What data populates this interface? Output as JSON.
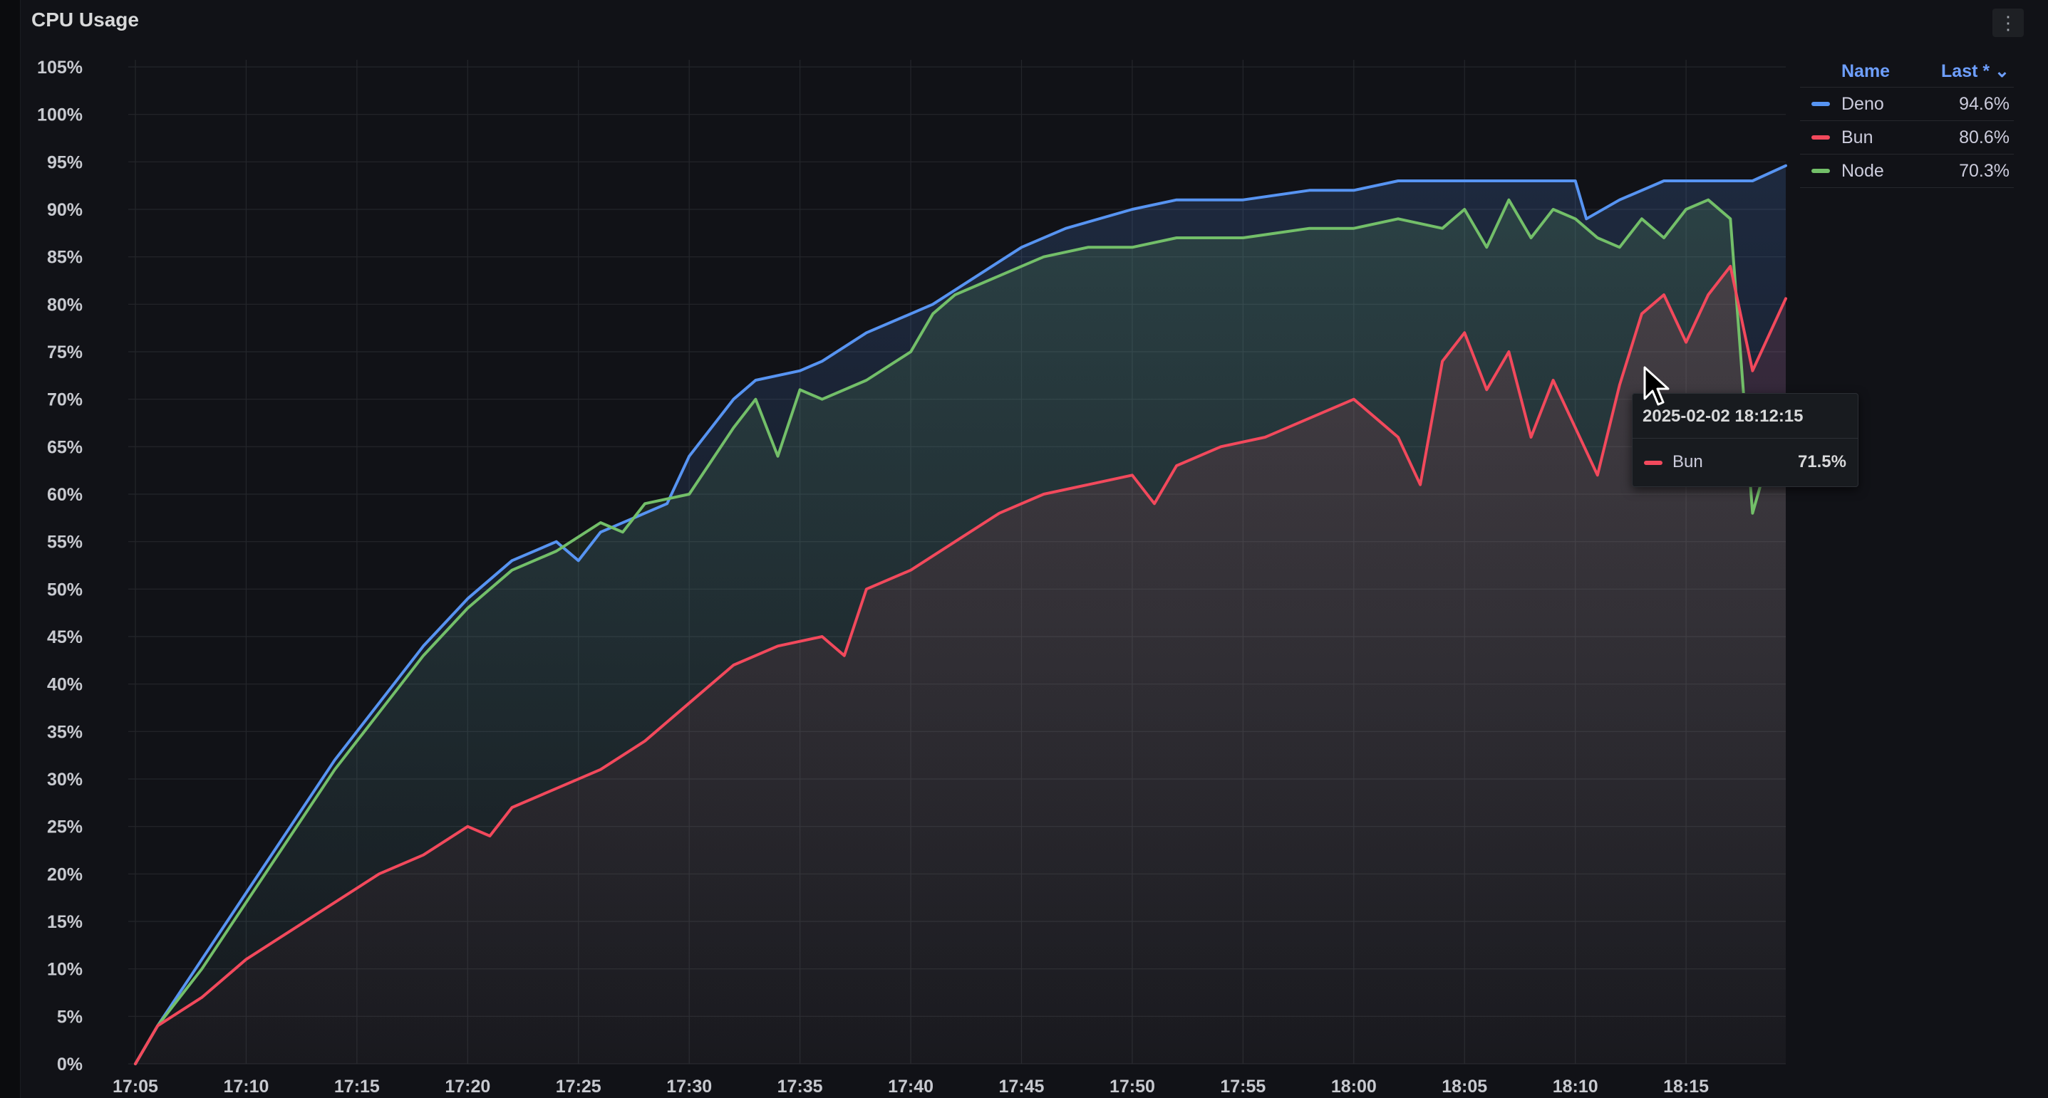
{
  "panel": {
    "title": "CPU Usage",
    "menu_icon": "kebab-menu-icon",
    "menu_label": "⋮"
  },
  "legend": {
    "name_header": "Name",
    "last_header": "Last * ⌄",
    "items": [
      {
        "name": "Deno",
        "last": "94.6%",
        "color": "#5794f2"
      },
      {
        "name": "Bun",
        "last": "80.6%",
        "color": "#f2495c"
      },
      {
        "name": "Node",
        "last": "70.3%",
        "color": "#73bf69"
      }
    ]
  },
  "tooltip": {
    "time": "2025-02-02 18:12:15",
    "series": "Bun",
    "value": "71.5%",
    "color": "#f2495c"
  },
  "chart_data": {
    "type": "line",
    "title": "CPU Usage",
    "xlabel": "",
    "ylabel": "",
    "x_ticks": [
      "17:05",
      "17:10",
      "17:15",
      "17:20",
      "17:25",
      "17:30",
      "17:35",
      "17:40",
      "17:45",
      "17:50",
      "17:55",
      "18:00",
      "18:05",
      "18:10",
      "18:15"
    ],
    "y_ticks": [
      "0%",
      "5%",
      "10%",
      "15%",
      "20%",
      "25%",
      "30%",
      "35%",
      "40%",
      "45%",
      "50%",
      "55%",
      "60%",
      "65%",
      "70%",
      "75%",
      "80%",
      "85%",
      "90%",
      "95%",
      "100%",
      "105%"
    ],
    "xlim": [
      "17:05",
      "18:19:30"
    ],
    "ylim": [
      0,
      105
    ],
    "grid": true,
    "legend_position": "right",
    "series": [
      {
        "name": "Deno",
        "color": "#5794f2",
        "points": [
          [
            "17:05",
            0
          ],
          [
            "17:06",
            4
          ],
          [
            "17:08",
            11
          ],
          [
            "17:10",
            18
          ],
          [
            "17:12",
            25
          ],
          [
            "17:14",
            32
          ],
          [
            "17:16",
            38
          ],
          [
            "17:18",
            44
          ],
          [
            "17:20",
            49
          ],
          [
            "17:22",
            53
          ],
          [
            "17:24",
            55
          ],
          [
            "17:25",
            53
          ],
          [
            "17:26",
            56
          ],
          [
            "17:28",
            58
          ],
          [
            "17:29",
            59
          ],
          [
            "17:30",
            64
          ],
          [
            "17:31",
            67
          ],
          [
            "17:32",
            70
          ],
          [
            "17:33",
            72
          ],
          [
            "17:35",
            73
          ],
          [
            "17:36",
            74
          ],
          [
            "17:38",
            77
          ],
          [
            "17:40",
            79
          ],
          [
            "17:41",
            80
          ],
          [
            "17:43",
            83
          ],
          [
            "17:45",
            86
          ],
          [
            "17:47",
            88
          ],
          [
            "17:50",
            90
          ],
          [
            "17:52",
            91
          ],
          [
            "17:55",
            91
          ],
          [
            "17:58",
            92
          ],
          [
            "18:00",
            92
          ],
          [
            "18:02",
            93
          ],
          [
            "18:05",
            93
          ],
          [
            "18:07",
            93
          ],
          [
            "18:10",
            93
          ],
          [
            "18:10:30",
            89
          ],
          [
            "18:12",
            91
          ],
          [
            "18:14",
            93
          ],
          [
            "18:16",
            93
          ],
          [
            "18:18",
            93
          ],
          [
            "18:19:30",
            94.6
          ]
        ]
      },
      {
        "name": "Bun",
        "color": "#f2495c",
        "points": [
          [
            "17:05",
            0
          ],
          [
            "17:06",
            4
          ],
          [
            "17:08",
            7
          ],
          [
            "17:10",
            11
          ],
          [
            "17:12",
            14
          ],
          [
            "17:14",
            17
          ],
          [
            "17:16",
            20
          ],
          [
            "17:18",
            22
          ],
          [
            "17:20",
            25
          ],
          [
            "17:21",
            24
          ],
          [
            "17:22",
            27
          ],
          [
            "17:24",
            29
          ],
          [
            "17:26",
            31
          ],
          [
            "17:28",
            34
          ],
          [
            "17:30",
            38
          ],
          [
            "17:32",
            42
          ],
          [
            "17:34",
            44
          ],
          [
            "17:36",
            45
          ],
          [
            "17:37",
            43
          ],
          [
            "17:38",
            50
          ],
          [
            "17:40",
            52
          ],
          [
            "17:42",
            55
          ],
          [
            "17:44",
            58
          ],
          [
            "17:46",
            60
          ],
          [
            "17:48",
            61
          ],
          [
            "17:50",
            62
          ],
          [
            "17:51",
            59
          ],
          [
            "17:52",
            63
          ],
          [
            "17:54",
            65
          ],
          [
            "17:56",
            66
          ],
          [
            "17:58",
            68
          ],
          [
            "18:00",
            70
          ],
          [
            "18:01",
            68
          ],
          [
            "18:02",
            66
          ],
          [
            "18:03",
            61
          ],
          [
            "18:04",
            74
          ],
          [
            "18:05",
            77
          ],
          [
            "18:06",
            71
          ],
          [
            "18:07",
            75
          ],
          [
            "18:08",
            66
          ],
          [
            "18:09",
            72
          ],
          [
            "18:10",
            67
          ],
          [
            "18:11",
            62
          ],
          [
            "18:12",
            71.5
          ],
          [
            "18:13",
            79
          ],
          [
            "18:14",
            81
          ],
          [
            "18:15",
            76
          ],
          [
            "18:16",
            81
          ],
          [
            "18:17",
            84
          ],
          [
            "18:18",
            73
          ],
          [
            "18:19:30",
            80.6
          ]
        ]
      },
      {
        "name": "Node",
        "color": "#73bf69",
        "points": [
          [
            "17:05",
            0
          ],
          [
            "17:06",
            4
          ],
          [
            "17:08",
            10
          ],
          [
            "17:10",
            17
          ],
          [
            "17:12",
            24
          ],
          [
            "17:14",
            31
          ],
          [
            "17:16",
            37
          ],
          [
            "17:18",
            43
          ],
          [
            "17:20",
            48
          ],
          [
            "17:22",
            52
          ],
          [
            "17:24",
            54
          ],
          [
            "17:26",
            57
          ],
          [
            "17:27",
            56
          ],
          [
            "17:28",
            59
          ],
          [
            "17:30",
            60
          ],
          [
            "17:32",
            67
          ],
          [
            "17:33",
            70
          ],
          [
            "17:34",
            64
          ],
          [
            "17:35",
            71
          ],
          [
            "17:36",
            70
          ],
          [
            "17:38",
            72
          ],
          [
            "17:40",
            75
          ],
          [
            "17:41",
            79
          ],
          [
            "17:42",
            81
          ],
          [
            "17:44",
            83
          ],
          [
            "17:46",
            85
          ],
          [
            "17:48",
            86
          ],
          [
            "17:50",
            86
          ],
          [
            "17:52",
            87
          ],
          [
            "17:55",
            87
          ],
          [
            "17:58",
            88
          ],
          [
            "18:00",
            88
          ],
          [
            "18:02",
            89
          ],
          [
            "18:04",
            88
          ],
          [
            "18:05",
            90
          ],
          [
            "18:06",
            86
          ],
          [
            "18:07",
            91
          ],
          [
            "18:08",
            87
          ],
          [
            "18:09",
            90
          ],
          [
            "18:10",
            89
          ],
          [
            "18:11",
            87
          ],
          [
            "18:12",
            86
          ],
          [
            "18:13",
            89
          ],
          [
            "18:14",
            87
          ],
          [
            "18:15",
            90
          ],
          [
            "18:16",
            91
          ],
          [
            "18:17",
            89
          ],
          [
            "18:18",
            58
          ],
          [
            "18:19:30",
            70.3
          ]
        ]
      }
    ]
  }
}
